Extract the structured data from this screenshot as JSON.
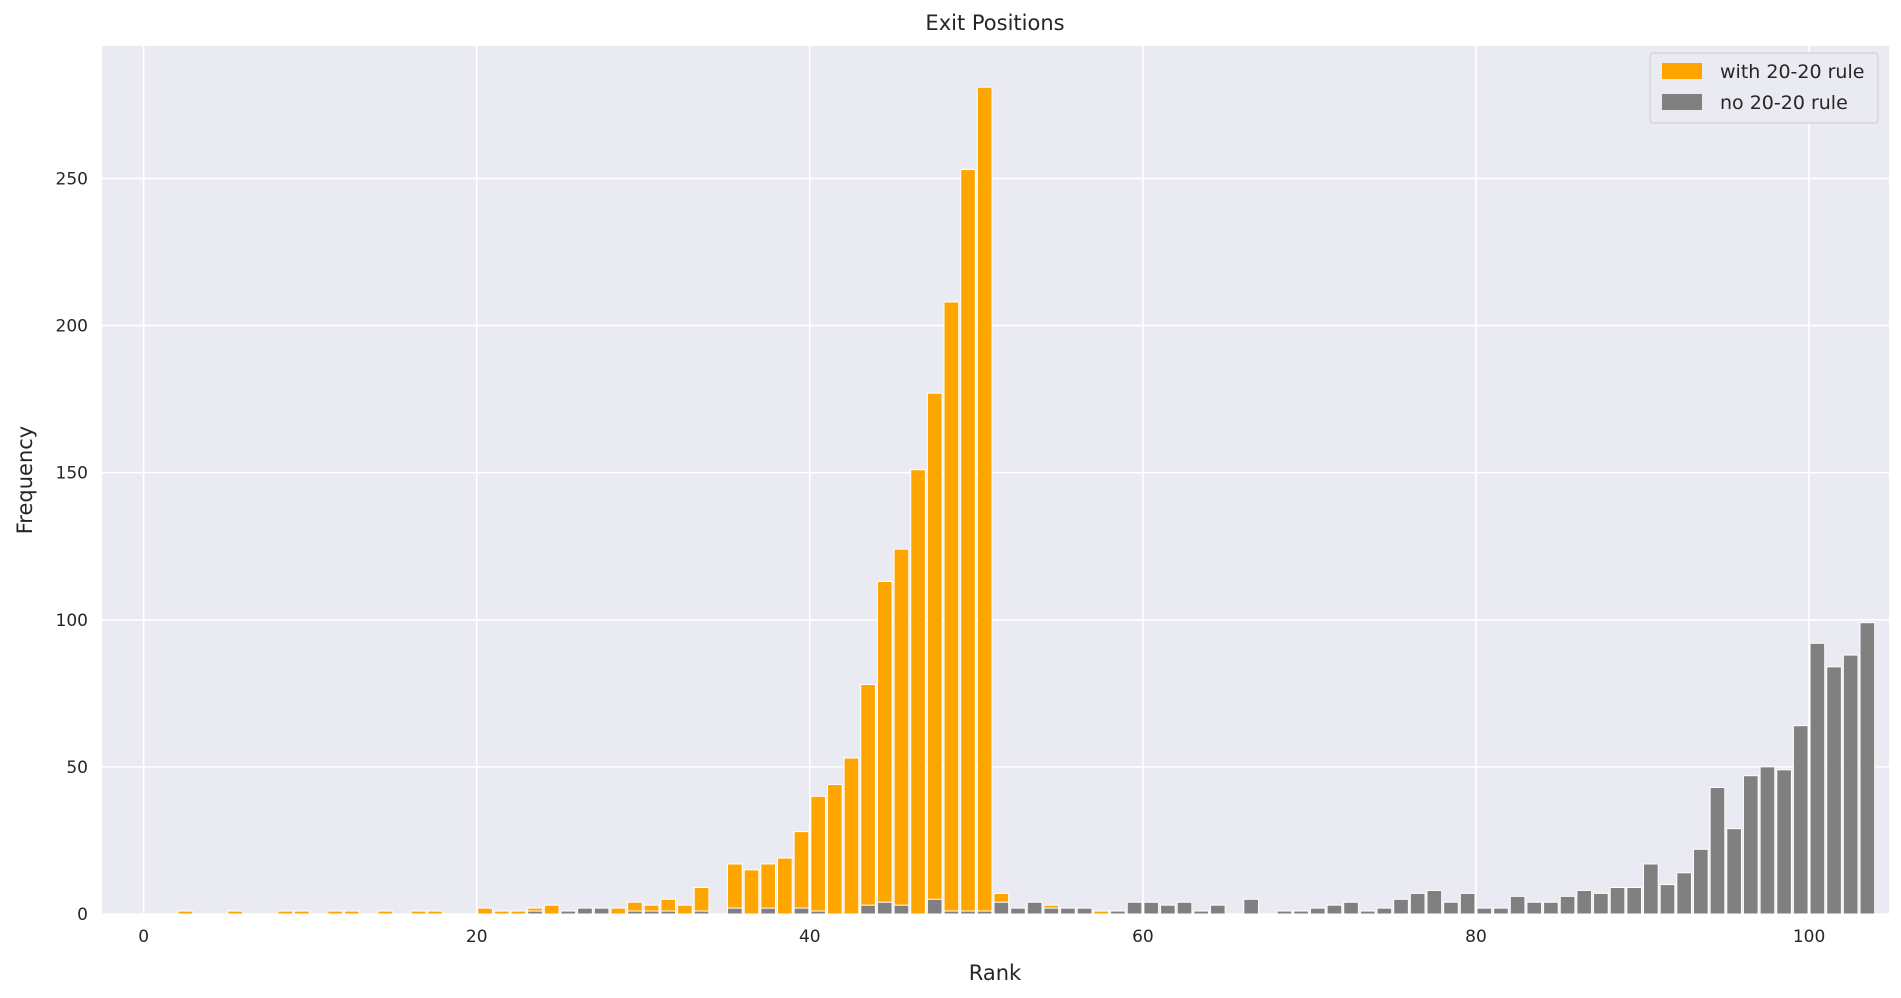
{
  "chart_data": {
    "type": "bar",
    "title": "Exit Positions",
    "xlabel": "Rank",
    "ylabel": "Frequency",
    "xlim": [
      -2.5,
      104.8
    ],
    "ylim": [
      0,
      295
    ],
    "x_ticks": [
      0,
      20,
      40,
      60,
      80,
      100
    ],
    "y_ticks": [
      0,
      50,
      100,
      150,
      200,
      250
    ],
    "grid": true,
    "legend_position": "top-right",
    "bar_width": 0.88,
    "series": [
      {
        "name": "with 20-20 rule",
        "color": "#ffa500",
        "points": [
          [
            2.5,
            1
          ],
          [
            5.5,
            1
          ],
          [
            8.5,
            1
          ],
          [
            9.5,
            1
          ],
          [
            11.5,
            1
          ],
          [
            12.5,
            1
          ],
          [
            14.5,
            1
          ],
          [
            16.5,
            1
          ],
          [
            17.5,
            1
          ],
          [
            20.5,
            2
          ],
          [
            21.5,
            1
          ],
          [
            22.5,
            1
          ],
          [
            23.5,
            2
          ],
          [
            24.5,
            3
          ],
          [
            25.5,
            1
          ],
          [
            27.5,
            1
          ],
          [
            28.5,
            2
          ],
          [
            29.5,
            4
          ],
          [
            30.5,
            3
          ],
          [
            31.5,
            5
          ],
          [
            32.5,
            3
          ],
          [
            33.5,
            9
          ],
          [
            35.5,
            17
          ],
          [
            36.5,
            15
          ],
          [
            37.5,
            17
          ],
          [
            38.5,
            19
          ],
          [
            39.5,
            28
          ],
          [
            40.5,
            40
          ],
          [
            41.5,
            44
          ],
          [
            42.5,
            53
          ],
          [
            43.5,
            78
          ],
          [
            44.5,
            113
          ],
          [
            45.5,
            124
          ],
          [
            46.5,
            151
          ],
          [
            47.5,
            177
          ],
          [
            48.5,
            208
          ],
          [
            49.5,
            253
          ],
          [
            50.5,
            281
          ],
          [
            51.5,
            7
          ],
          [
            53.5,
            3
          ],
          [
            54.5,
            3
          ],
          [
            57.5,
            1
          ]
        ]
      },
      {
        "name": "no 20-20 rule",
        "color": "#808080",
        "points": [
          [
            23.5,
            1
          ],
          [
            25.5,
            1
          ],
          [
            26.5,
            2
          ],
          [
            27.5,
            2
          ],
          [
            29.5,
            1
          ],
          [
            30.5,
            1
          ],
          [
            31.5,
            1
          ],
          [
            33.5,
            1
          ],
          [
            35.5,
            2
          ],
          [
            37.5,
            2
          ],
          [
            39.5,
            2
          ],
          [
            40.5,
            1
          ],
          [
            43.5,
            3
          ],
          [
            44.5,
            4
          ],
          [
            45.5,
            3
          ],
          [
            47.5,
            5
          ],
          [
            48.5,
            1
          ],
          [
            49.5,
            1
          ],
          [
            50.5,
            1
          ],
          [
            51.5,
            4
          ],
          [
            52.5,
            2
          ],
          [
            53.5,
            4
          ],
          [
            54.5,
            2
          ],
          [
            55.5,
            2
          ],
          [
            56.5,
            2
          ],
          [
            58.5,
            1
          ],
          [
            59.5,
            4
          ],
          [
            60.5,
            4
          ],
          [
            61.5,
            3
          ],
          [
            62.5,
            4
          ],
          [
            63.5,
            1
          ],
          [
            64.5,
            3
          ],
          [
            66.5,
            5
          ],
          [
            68.5,
            1
          ],
          [
            69.5,
            1
          ],
          [
            70.5,
            2
          ],
          [
            71.5,
            3
          ],
          [
            72.5,
            4
          ],
          [
            73.5,
            1
          ],
          [
            74.5,
            2
          ],
          [
            75.5,
            5
          ],
          [
            76.5,
            7
          ],
          [
            77.5,
            8
          ],
          [
            78.5,
            4
          ],
          [
            79.5,
            7
          ],
          [
            80.5,
            2
          ],
          [
            81.5,
            2
          ],
          [
            82.5,
            6
          ],
          [
            83.5,
            4
          ],
          [
            84.5,
            4
          ],
          [
            85.5,
            6
          ],
          [
            86.5,
            8
          ],
          [
            87.5,
            7
          ],
          [
            88.5,
            9
          ],
          [
            89.5,
            9
          ],
          [
            90.5,
            17
          ],
          [
            91.5,
            10
          ],
          [
            92.5,
            14
          ],
          [
            93.5,
            22
          ],
          [
            94.5,
            43
          ],
          [
            95.5,
            29
          ],
          [
            96.5,
            47
          ],
          [
            97.5,
            50
          ],
          [
            98.5,
            49
          ],
          [
            99.5,
            64
          ],
          [
            100.5,
            92
          ],
          [
            101.5,
            84
          ],
          [
            102.5,
            88
          ],
          [
            103.5,
            99
          ]
        ]
      }
    ]
  }
}
